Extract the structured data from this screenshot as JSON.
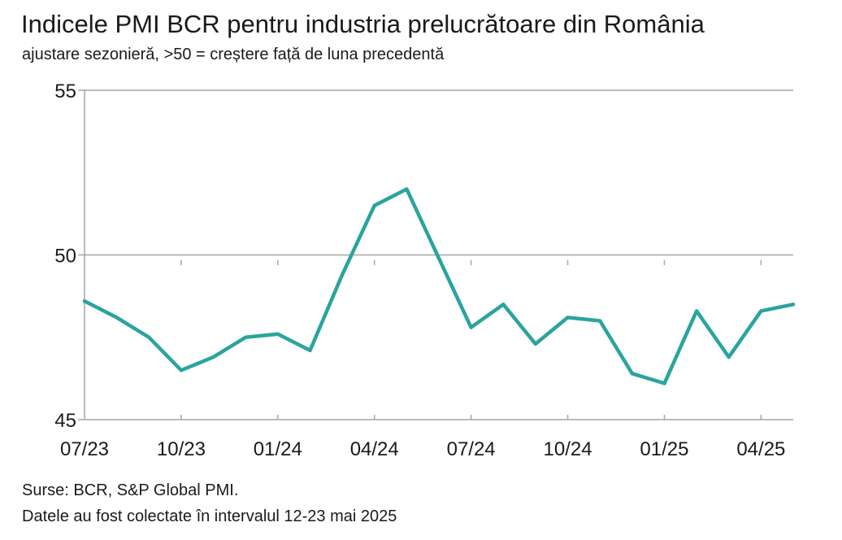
{
  "chart_data": {
    "type": "line",
    "title": "Indicele PMI BCR pentru industria prelucrătoare din România",
    "subtitle": "ajustare sezonieră, >50 = creștere față de luna precedentă",
    "ylim": [
      45,
      55
    ],
    "yticks": [
      45,
      50,
      55
    ],
    "x": [
      "07/23",
      "08/23",
      "09/23",
      "10/23",
      "11/23",
      "12/23",
      "01/24",
      "02/24",
      "03/24",
      "04/24",
      "05/24",
      "06/24",
      "07/24",
      "08/24",
      "09/24",
      "10/24",
      "11/24",
      "12/24",
      "01/25",
      "02/25",
      "03/25",
      "04/25",
      "05/25"
    ],
    "xtick_labels": [
      "07/23",
      "10/23",
      "01/24",
      "04/24",
      "07/24",
      "10/24",
      "01/25",
      "04/25"
    ],
    "series": [
      {
        "values": [
          48.6,
          48.1,
          47.5,
          46.5,
          46.9,
          47.5,
          47.6,
          47.1,
          49.4,
          51.5,
          52.0,
          49.9,
          47.8,
          48.5,
          47.3,
          48.1,
          48.0,
          46.4,
          46.1,
          48.3,
          46.9,
          48.3,
          48.5
        ]
      }
    ],
    "grid": "horizontal",
    "line_color": "#2aa49e"
  },
  "footer": {
    "source": "Surse: BCR, S&P Global PMI.",
    "collected": "Datele au fost colectate în intervalul 12-23 mai 2025"
  }
}
